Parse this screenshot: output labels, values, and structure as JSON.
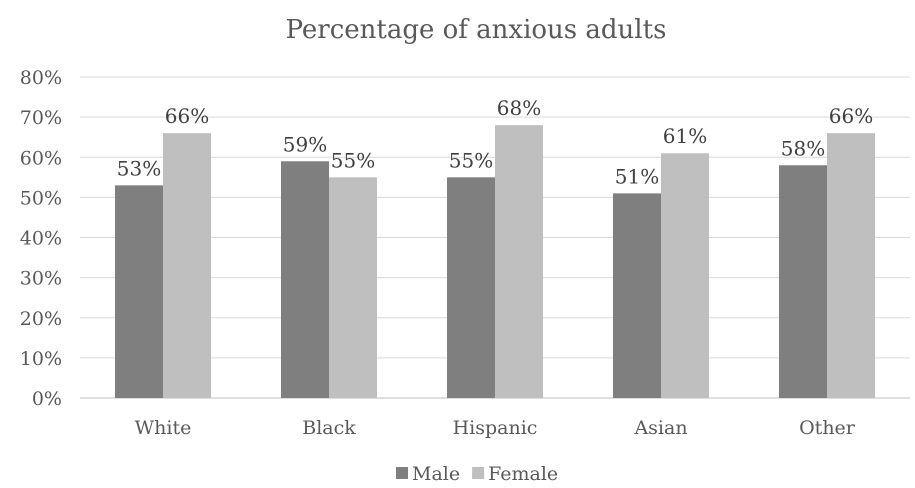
{
  "chart_data": {
    "type": "bar",
    "title": "Percentage of anxious adults",
    "categories": [
      "White",
      "Black",
      "Hispanic",
      "Asian",
      "Other"
    ],
    "series": [
      {
        "name": "Male",
        "color": "#7f7f7f",
        "values": [
          53,
          59,
          55,
          51,
          58
        ],
        "labels": [
          "53%",
          "59%",
          "55%",
          "51%",
          "58%"
        ]
      },
      {
        "name": "Female",
        "color": "#bfbfbf",
        "values": [
          66,
          55,
          68,
          61,
          66
        ],
        "labels": [
          "66%",
          "55%",
          "68%",
          "61%",
          "66%"
        ]
      }
    ],
    "ylim": [
      0,
      80
    ],
    "yticks": [
      "0%",
      "10%",
      "20%",
      "30%",
      "40%",
      "50%",
      "60%",
      "70%",
      "80%"
    ],
    "grid": true,
    "legend": "bottom"
  }
}
